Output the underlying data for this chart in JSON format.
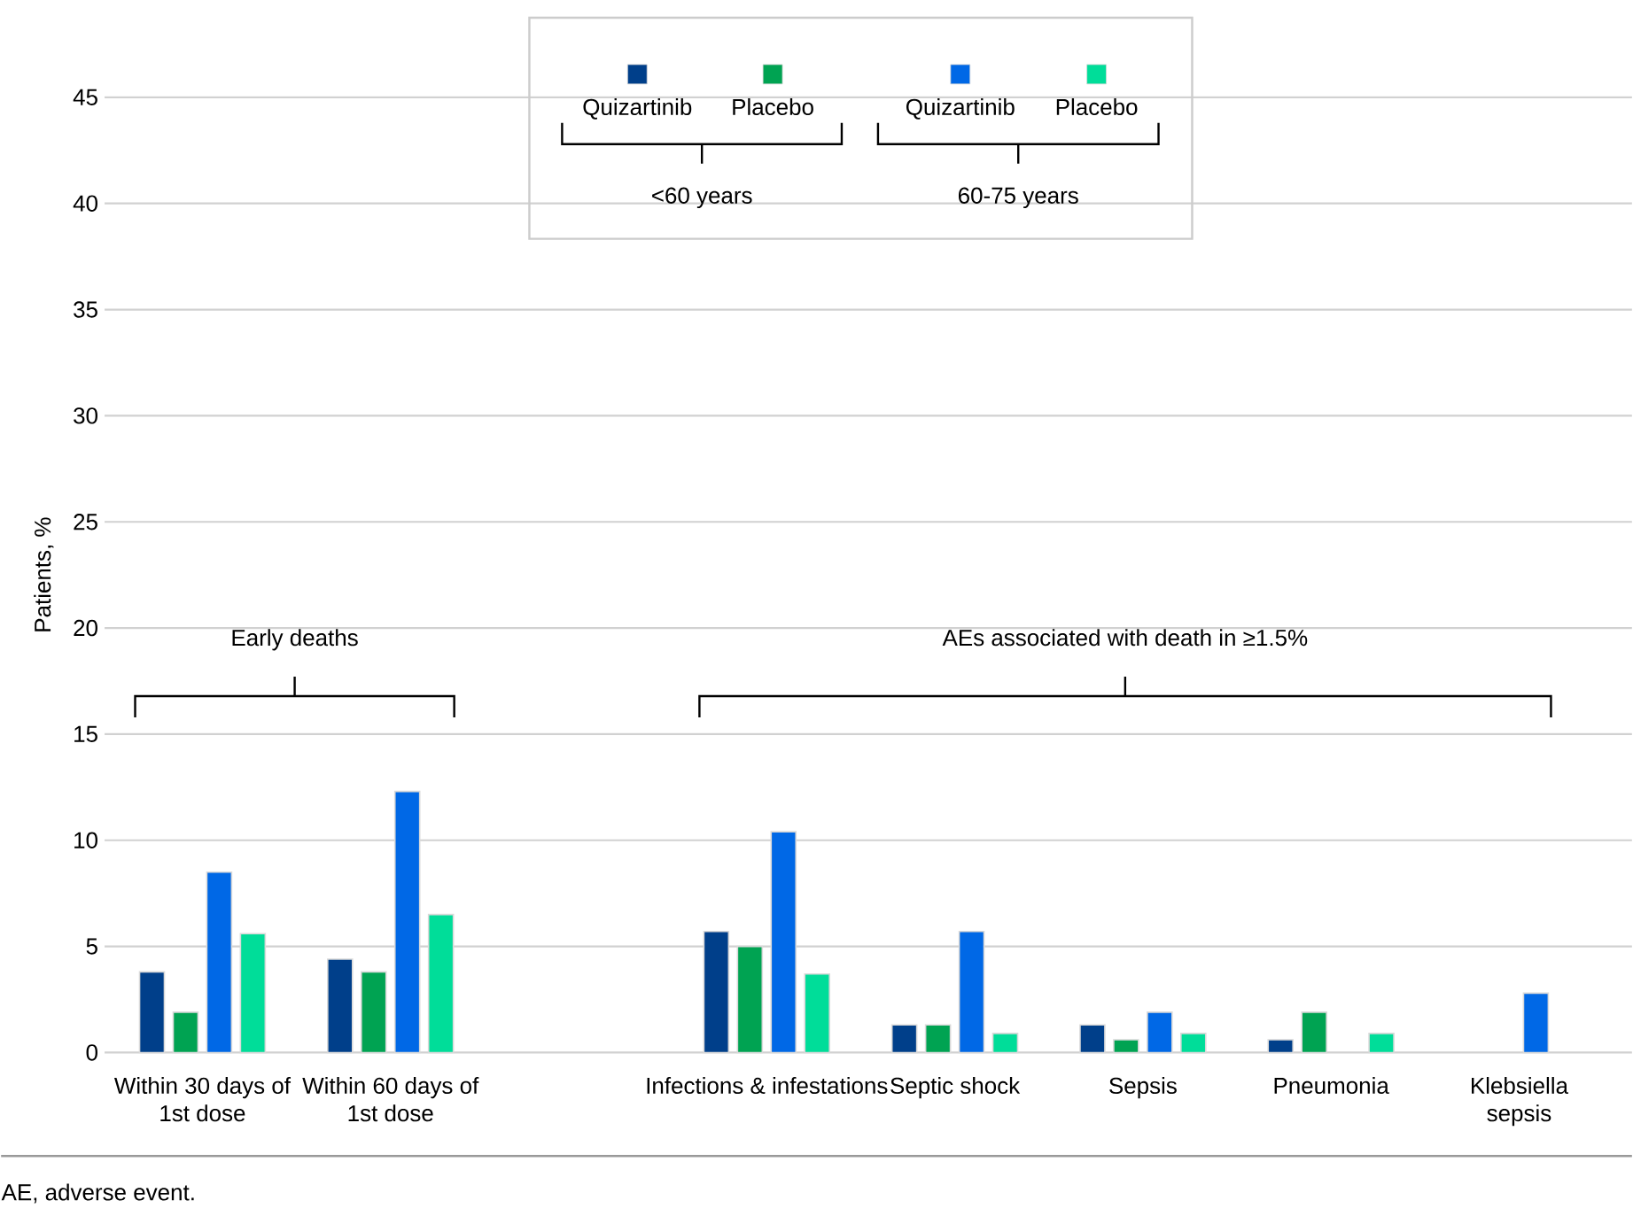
{
  "chart_data": {
    "type": "bar",
    "ylabel": "Patients, %",
    "categories": [
      "Within 30 days of 1st dose",
      "Within 60 days of 1st dose",
      null,
      "Infections & infestations",
      "Septic shock",
      "Sepsis",
      "Pneumonia",
      "Klebsiella sepsis"
    ],
    "series": [
      {
        "name": "Quizartinib",
        "color": "#003f8a",
        "values": [
          3.8,
          4.4,
          null,
          5.7,
          1.3,
          1.3,
          0.6,
          null
        ]
      },
      {
        "name": "Placebo",
        "color": "#00a352",
        "values": [
          1.9,
          3.8,
          null,
          5.0,
          1.3,
          0.6,
          1.9,
          null
        ]
      },
      {
        "name": "Quizartinib",
        "color": "#0068e6",
        "values": [
          8.5,
          12.3,
          null,
          10.4,
          5.7,
          1.9,
          null,
          2.8
        ]
      },
      {
        "name": "Placebo",
        "color": "#00dd99",
        "values": [
          5.6,
          6.5,
          null,
          3.7,
          0.9,
          0.9,
          0.9,
          null
        ]
      }
    ],
    "ylim": [
      0,
      45
    ],
    "yticks": [
      0,
      5,
      10,
      15,
      20,
      25,
      30,
      35,
      40,
      45
    ],
    "grid": "y",
    "legend": "top",
    "annotations": [
      "Early deaths",
      "AEs associated with death in ≥1.5%",
      "<60 years",
      "60-75 years",
      "AE, adverse event."
    ]
  }
}
